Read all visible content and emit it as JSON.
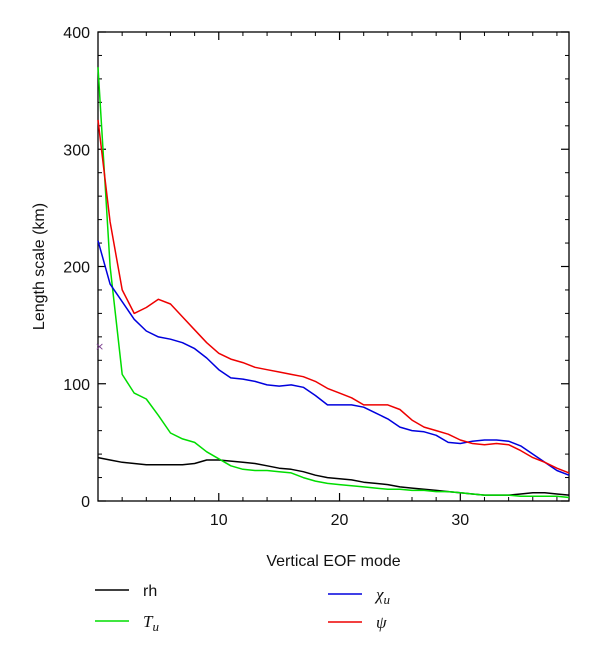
{
  "chart_data": {
    "type": "line",
    "xlabel": "Vertical EOF mode",
    "ylabel": "Length scale (km)",
    "xlim": [
      0,
      39
    ],
    "ylim": [
      0,
      400
    ],
    "xticks": [
      10,
      20,
      30
    ],
    "yticks": [
      0,
      100,
      200,
      300,
      400
    ],
    "grid": false,
    "legend_placement": "below plot, two columns",
    "series": [
      {
        "name": "rh",
        "name_main": "rh",
        "name_sub": "",
        "color": "#000000",
        "legend_pos": "left-1",
        "x": [
          0,
          1,
          2,
          3,
          4,
          5,
          6,
          7,
          8,
          9,
          10,
          11,
          12,
          13,
          14,
          15,
          16,
          17,
          18,
          19,
          20,
          21,
          22,
          23,
          24,
          25,
          26,
          27,
          28,
          29,
          30,
          31,
          32,
          33,
          34,
          35,
          36,
          37,
          38,
          39
        ],
        "values": [
          37,
          35,
          33,
          32,
          31,
          31,
          31,
          31,
          32,
          35,
          35,
          34,
          33,
          32,
          30,
          28,
          27,
          25,
          22,
          20,
          19,
          18,
          16,
          15,
          14,
          12,
          11,
          10,
          9,
          8,
          7,
          6,
          5,
          5,
          5,
          6,
          7,
          7,
          6,
          5
        ]
      },
      {
        "name": "Tu",
        "name_main": "T",
        "name_sub": "u",
        "color": "#00dd00",
        "legend_pos": "left-2",
        "x": [
          0,
          1,
          2,
          3,
          4,
          5,
          6,
          7,
          8,
          9,
          10,
          11,
          12,
          13,
          14,
          15,
          16,
          17,
          18,
          19,
          20,
          21,
          22,
          23,
          24,
          25,
          26,
          27,
          28,
          29,
          30,
          31,
          32,
          33,
          34,
          35,
          36,
          37,
          38,
          39
        ],
        "values": [
          370,
          200,
          108,
          92,
          87,
          73,
          58,
          53,
          50,
          42,
          36,
          30,
          27,
          26,
          26,
          25,
          24,
          20,
          17,
          15,
          14,
          13,
          12,
          11,
          10,
          10,
          9,
          9,
          8,
          8,
          7,
          6,
          5,
          5,
          5,
          4,
          4,
          4,
          4,
          3
        ]
      },
      {
        "name": "χu",
        "name_main": "χ",
        "name_sub": "u",
        "color": "#0000dd",
        "legend_pos": "right-1",
        "x": [
          0,
          1,
          2,
          3,
          4,
          5,
          6,
          7,
          8,
          9,
          10,
          11,
          12,
          13,
          14,
          15,
          16,
          17,
          18,
          19,
          20,
          21,
          22,
          23,
          24,
          25,
          26,
          27,
          28,
          29,
          30,
          31,
          32,
          33,
          34,
          35,
          36,
          37,
          38,
          39
        ],
        "values": [
          222,
          185,
          170,
          155,
          145,
          140,
          138,
          135,
          130,
          122,
          112,
          105,
          104,
          102,
          99,
          98,
          99,
          97,
          90,
          82,
          82,
          82,
          80,
          75,
          70,
          63,
          60,
          59,
          56,
          50,
          49,
          51,
          52,
          52,
          51,
          47,
          40,
          33,
          26,
          22
        ]
      },
      {
        "name": "ψ",
        "name_main": "ψ",
        "name_sub": "",
        "color": "#ee0000",
        "legend_pos": "right-2",
        "x": [
          0,
          1,
          2,
          3,
          4,
          5,
          6,
          7,
          8,
          9,
          10,
          11,
          12,
          13,
          14,
          15,
          16,
          17,
          18,
          19,
          20,
          21,
          22,
          23,
          24,
          25,
          26,
          27,
          28,
          29,
          30,
          31,
          32,
          33,
          34,
          35,
          36,
          37,
          38,
          39
        ],
        "values": [
          325,
          238,
          180,
          160,
          165,
          172,
          168,
          157,
          146,
          135,
          126,
          121,
          118,
          114,
          112,
          110,
          108,
          106,
          102,
          96,
          92,
          88,
          82,
          82,
          82,
          78,
          69,
          63,
          60,
          57,
          52,
          49,
          48,
          49,
          48,
          43,
          37,
          33,
          28,
          24
        ]
      }
    ]
  }
}
